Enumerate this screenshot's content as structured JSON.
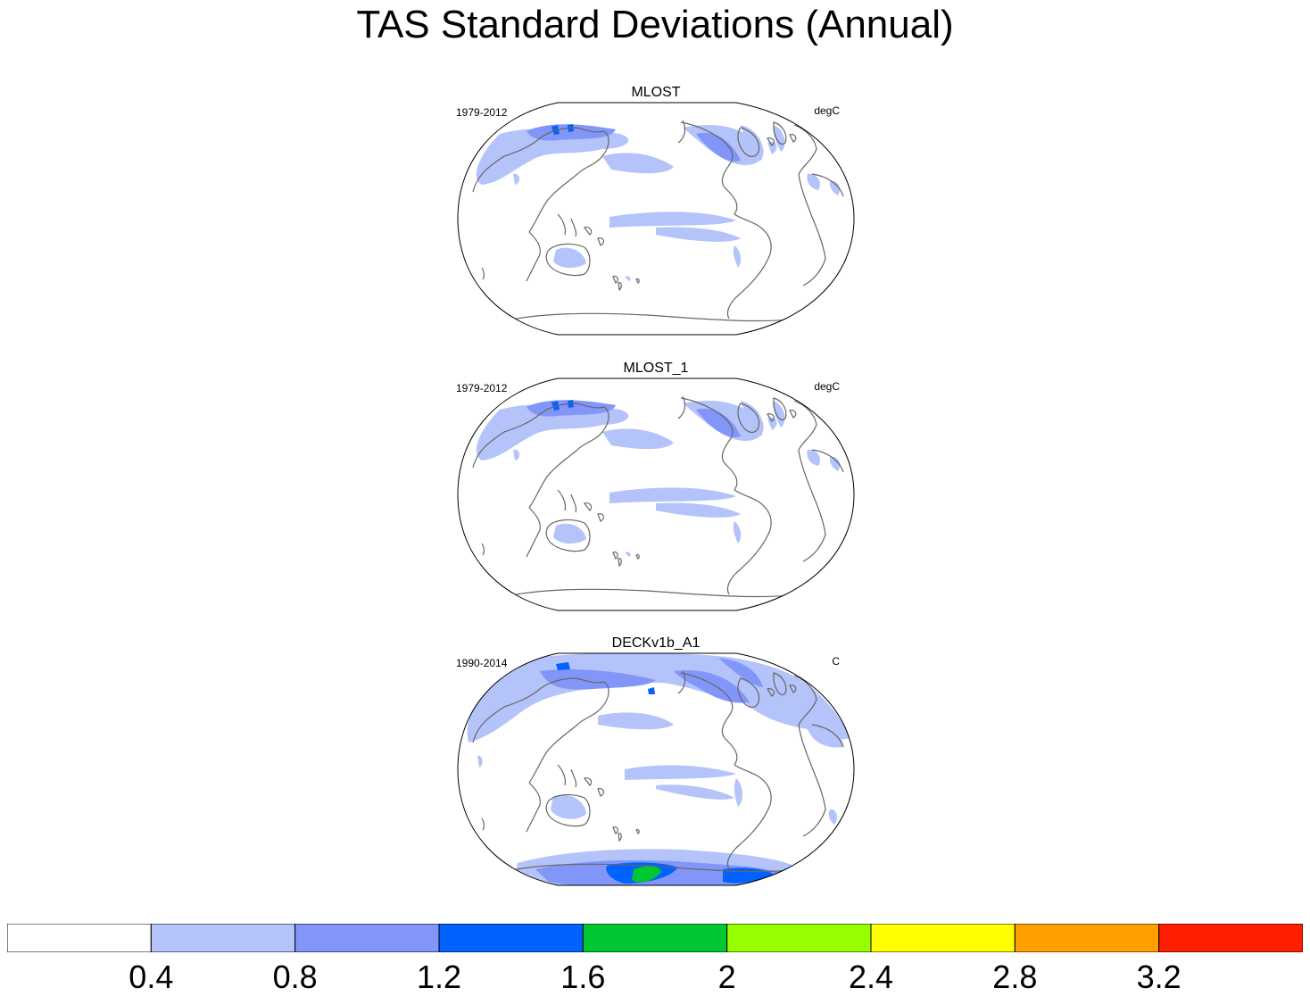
{
  "title": "TAS Standard Deviations (Annual)",
  "panels": [
    {
      "name": "MLOST",
      "period": "1979-2012",
      "units": "degC"
    },
    {
      "name": "MLOST_1",
      "period": "1979-2012",
      "units": "degC"
    },
    {
      "name": "DECKv1b_A1",
      "period": "1990-2014",
      "units": "C"
    }
  ],
  "colorbar": {
    "colors": [
      "#ffffff",
      "#b4c3fa",
      "#8296fa",
      "#0062ff",
      "#00c832",
      "#96ff00",
      "#ffff00",
      "#ffa000",
      "#ff1e00"
    ],
    "labels": [
      "0.4",
      "0.8",
      "1.2",
      "1.6",
      "2",
      "2.4",
      "2.8",
      "3.2"
    ]
  },
  "map": {
    "projection": "robinson-like",
    "center_longitude": 180,
    "coastline_color": "#666666"
  }
}
